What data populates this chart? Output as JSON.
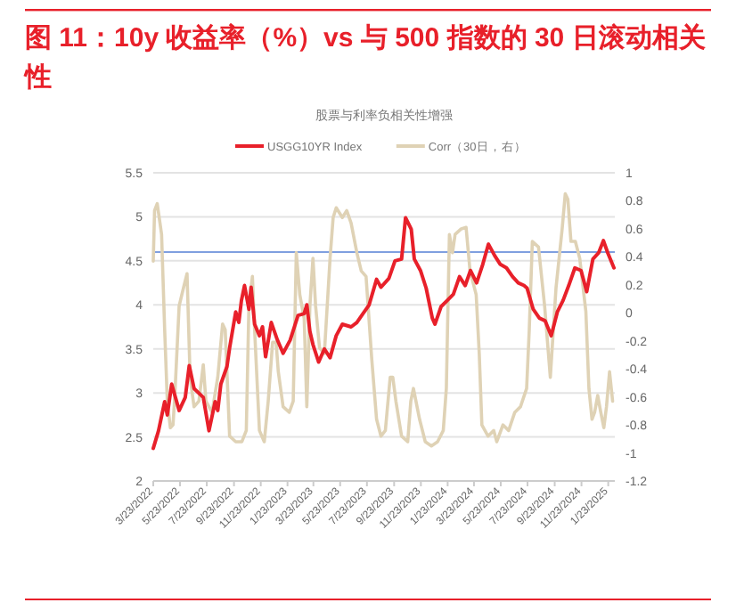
{
  "chart_data": {
    "type": "line",
    "title": "图 11：10y 收益率（%）vs 与 500 指数的 30 日滚动相关性",
    "subtitle": "股票与利率负相关性增强",
    "xlim": [
      "2022-03-23",
      "2025-02-07"
    ],
    "xticks": [
      {
        "value": "2022-03-23",
        "label": "3/23/2022"
      },
      {
        "value": "2022-05-23",
        "label": "5/23/2022"
      },
      {
        "value": "2022-07-23",
        "label": "7/23/2022"
      },
      {
        "value": "2022-09-23",
        "label": "9/23/2022"
      },
      {
        "value": "2022-11-23",
        "label": "11/23/2022"
      },
      {
        "value": "2023-01-23",
        "label": "1/23/2023"
      },
      {
        "value": "2023-03-23",
        "label": "3/23/2023"
      },
      {
        "value": "2023-05-23",
        "label": "5/23/2023"
      },
      {
        "value": "2023-07-23",
        "label": "7/23/2023"
      },
      {
        "value": "2023-09-23",
        "label": "9/23/2023"
      },
      {
        "value": "2023-11-23",
        "label": "11/23/2023"
      },
      {
        "value": "2024-01-23",
        "label": "1/23/2024"
      },
      {
        "value": "2024-03-23",
        "label": "3/23/2024"
      },
      {
        "value": "2024-05-23",
        "label": "5/23/2024"
      },
      {
        "value": "2024-07-23",
        "label": "7/23/2024"
      },
      {
        "value": "2024-09-23",
        "label": "9/23/2024"
      },
      {
        "value": "2024-11-23",
        "label": "11/23/2024"
      },
      {
        "value": "2025-01-23",
        "label": "1/23/2025"
      }
    ],
    "ylim": [
      2,
      5.5
    ],
    "yticks": [
      2,
      2.5,
      3,
      3.5,
      4,
      4.5,
      5,
      5.5
    ],
    "y2lim": [
      -1.2,
      1
    ],
    "y2ticks": [
      -1.2,
      -1,
      -0.8,
      -0.6,
      -0.4,
      -0.2,
      0,
      0.2,
      0.4,
      0.6,
      0.8,
      1
    ],
    "grid": "y",
    "legend": "top",
    "marker": "none",
    "ref_lines": [
      {
        "axis": "y",
        "value": 4.6,
        "label": null,
        "color": "#7f9fdf"
      }
    ],
    "series": [
      {
        "name": "USGG10YR Index",
        "color": "#e8202a",
        "x": [
          "2022-03-23",
          "2022-04-04",
          "2022-04-18",
          "2022-04-24",
          "2022-05-04",
          "2022-05-21",
          "2022-06-04",
          "2022-06-13",
          "2022-06-24",
          "2022-07-15",
          "2022-07-28",
          "2022-08-11",
          "2022-08-17",
          "2022-08-24",
          "2022-09-07",
          "2022-09-13",
          "2022-09-27",
          "2022-10-04",
          "2022-10-10",
          "2022-10-17",
          "2022-10-27",
          "2022-11-01",
          "2022-11-09",
          "2022-11-20",
          "2022-11-27",
          "2022-12-04",
          "2022-12-17",
          "2022-12-31",
          "2023-01-13",
          "2023-01-29",
          "2023-02-16",
          "2023-03-02",
          "2023-03-08",
          "2023-03-15",
          "2023-03-22",
          "2023-04-04",
          "2023-04-17",
          "2023-04-30",
          "2023-05-14",
          "2023-05-28",
          "2023-06-17",
          "2023-06-30",
          "2023-07-14",
          "2023-07-28",
          "2023-08-14",
          "2023-08-24",
          "2023-09-11",
          "2023-09-25",
          "2023-10-10",
          "2023-10-19",
          "2023-11-01",
          "2023-11-08",
          "2023-11-22",
          "2023-12-05",
          "2023-12-19",
          "2023-12-25",
          "2024-01-08",
          "2024-01-22",
          "2024-02-05",
          "2024-02-19",
          "2024-03-03",
          "2024-03-15",
          "2024-03-29",
          "2024-04-12",
          "2024-04-25",
          "2024-05-09",
          "2024-05-22",
          "2024-06-05",
          "2024-06-19",
          "2024-07-02",
          "2024-07-15",
          "2024-07-22",
          "2024-08-05",
          "2024-08-19",
          "2024-09-01",
          "2024-09-15",
          "2024-09-29",
          "2024-10-12",
          "2024-10-25",
          "2024-11-08",
          "2024-11-22",
          "2024-12-05",
          "2024-12-19",
          "2025-01-01",
          "2025-01-12",
          "2025-01-22",
          "2025-02-05"
        ],
        "values": [
          2.37,
          2.57,
          2.9,
          2.75,
          3.1,
          2.8,
          2.95,
          3.31,
          3.05,
          2.95,
          2.57,
          2.9,
          2.8,
          3.1,
          3.3,
          3.51,
          3.92,
          3.8,
          4.05,
          4.22,
          3.95,
          4.2,
          3.78,
          3.65,
          3.75,
          3.41,
          3.8,
          3.6,
          3.45,
          3.6,
          3.88,
          3.9,
          4.0,
          3.7,
          3.55,
          3.35,
          3.5,
          3.4,
          3.65,
          3.78,
          3.75,
          3.8,
          3.9,
          4.0,
          4.29,
          4.2,
          4.3,
          4.5,
          4.52,
          4.99,
          4.86,
          4.52,
          4.39,
          4.19,
          3.85,
          3.78,
          3.98,
          4.05,
          4.12,
          4.32,
          4.22,
          4.39,
          4.25,
          4.46,
          4.69,
          4.56,
          4.46,
          4.42,
          4.32,
          4.25,
          4.22,
          4.19,
          3.95,
          3.85,
          3.82,
          3.65,
          3.92,
          4.05,
          4.22,
          4.42,
          4.39,
          4.15,
          4.52,
          4.59,
          4.73,
          4.59,
          4.42
        ]
      },
      {
        "name": "Corr（30日，右）",
        "color": "#dfd2b5",
        "axis": "y2",
        "x": [
          "2022-03-23",
          "2022-03-26",
          "2022-04-01",
          "2022-04-11",
          "2022-04-18",
          "2022-04-24",
          "2022-05-01",
          "2022-05-07",
          "2022-05-11",
          "2022-05-21",
          "2022-05-31",
          "2022-06-08",
          "2022-06-15",
          "2022-06-24",
          "2022-07-05",
          "2022-07-15",
          "2022-07-21",
          "2022-08-04",
          "2022-08-17",
          "2022-08-28",
          "2022-09-03",
          "2022-09-13",
          "2022-09-27",
          "2022-10-11",
          "2022-10-21",
          "2022-10-27",
          "2022-11-04",
          "2022-11-09",
          "2022-11-20",
          "2022-12-01",
          "2022-12-10",
          "2022-12-20",
          "2022-12-28",
          "2023-01-02",
          "2023-01-13",
          "2023-01-27",
          "2023-02-05",
          "2023-02-12",
          "2023-02-20",
          "2023-03-02",
          "2023-03-08",
          "2023-03-15",
          "2023-03-22",
          "2023-03-28",
          "2023-04-06",
          "2023-04-17",
          "2023-04-30",
          "2023-05-07",
          "2023-05-14",
          "2023-05-28",
          "2023-06-07",
          "2023-06-17",
          "2023-06-30",
          "2023-07-10",
          "2023-07-21",
          "2023-08-03",
          "2023-08-14",
          "2023-08-24",
          "2023-09-03",
          "2023-09-14",
          "2023-09-20",
          "2023-09-27",
          "2023-10-10",
          "2023-10-24",
          "2023-10-31",
          "2023-11-06",
          "2023-11-20",
          "2023-12-03",
          "2023-12-17",
          "2023-12-31",
          "2024-01-13",
          "2024-01-20",
          "2024-01-27",
          "2024-02-03",
          "2024-02-09",
          "2024-02-23",
          "2024-03-05",
          "2024-03-14",
          "2024-03-28",
          "2024-04-04",
          "2024-04-10",
          "2024-04-24",
          "2024-05-07",
          "2024-05-14",
          "2024-05-28",
          "2024-06-10",
          "2024-06-24",
          "2024-07-07",
          "2024-07-21",
          "2024-07-27",
          "2024-08-03",
          "2024-08-17",
          "2024-08-31",
          "2024-09-13",
          "2024-09-26",
          "2024-10-10",
          "2024-10-17",
          "2024-10-23",
          "2024-10-30",
          "2024-11-09",
          "2024-11-19",
          "2024-12-03",
          "2024-12-10",
          "2024-12-17",
          "2024-12-23",
          "2024-12-30",
          "2025-01-06",
          "2025-01-13",
          "2025-01-19",
          "2025-01-26",
          "2025-02-02"
        ],
        "values": [
          0.37,
          0.73,
          0.78,
          0.56,
          -0.12,
          -0.63,
          -0.82,
          -0.8,
          -0.6,
          0.05,
          0.18,
          0.28,
          -0.46,
          -0.67,
          -0.63,
          -0.37,
          -0.63,
          -0.71,
          -0.46,
          -0.08,
          -0.12,
          -0.88,
          -0.92,
          -0.92,
          -0.84,
          0.05,
          0.26,
          -0.12,
          -0.84,
          -0.92,
          -0.63,
          -0.21,
          -0.21,
          -0.42,
          -0.67,
          -0.71,
          -0.63,
          0.43,
          0.13,
          -0.04,
          -0.67,
          0.05,
          0.39,
          0.05,
          -0.25,
          -0.29,
          0.39,
          0.68,
          0.75,
          0.68,
          0.73,
          0.64,
          0.43,
          0.3,
          0.26,
          -0.33,
          -0.76,
          -0.88,
          -0.84,
          -0.46,
          -0.46,
          -0.63,
          -0.88,
          -0.92,
          -0.63,
          -0.54,
          -0.76,
          -0.92,
          -0.95,
          -0.92,
          -0.84,
          -0.54,
          0.56,
          0.43,
          0.56,
          0.6,
          0.61,
          0.3,
          0.13,
          -0.29,
          -0.8,
          -0.88,
          -0.84,
          -0.92,
          -0.8,
          -0.84,
          -0.71,
          -0.67,
          -0.54,
          -0.12,
          0.51,
          0.47,
          0.05,
          -0.46,
          0.18,
          0.6,
          0.85,
          0.81,
          0.51,
          0.51,
          0.39,
          0.01,
          -0.54,
          -0.76,
          -0.71,
          -0.59,
          -0.71,
          -0.82,
          -0.67,
          -0.42,
          -0.63
        ]
      }
    ]
  }
}
